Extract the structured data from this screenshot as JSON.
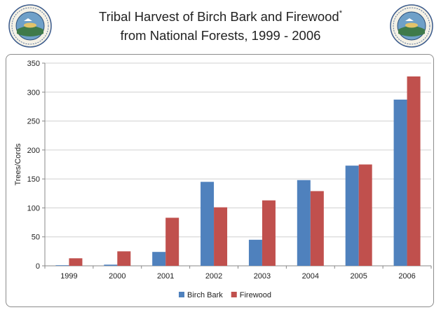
{
  "header": {
    "title_line1": "Tribal Harvest of Birch Bark and Firewood",
    "title_mark": "*",
    "title_line2": "from National Forests, 1999 - 2006",
    "logo_icon": "great-lakes-indian-fish-wildlife-commission-seal",
    "logo_text": "Great Lakes Indian Fish & Wildlife Commission"
  },
  "chart_data": {
    "type": "bar",
    "categories": [
      "1999",
      "2000",
      "2001",
      "2002",
      "2003",
      "2004",
      "2005",
      "2006"
    ],
    "series": [
      {
        "name": "Birch Bark",
        "color": "#4f81bd",
        "values": [
          1,
          2,
          24,
          145,
          45,
          148,
          173,
          287
        ]
      },
      {
        "name": "Firewood",
        "color": "#c0504d",
        "values": [
          13,
          25,
          83,
          101,
          113,
          129,
          175,
          327
        ]
      }
    ],
    "title": "",
    "xlabel": "",
    "ylabel": "Trees/Cords",
    "ylim": [
      0,
      350
    ],
    "yticks": [
      0,
      50,
      100,
      150,
      200,
      250,
      300,
      350
    ],
    "grid": true,
    "legend_position": "bottom"
  }
}
